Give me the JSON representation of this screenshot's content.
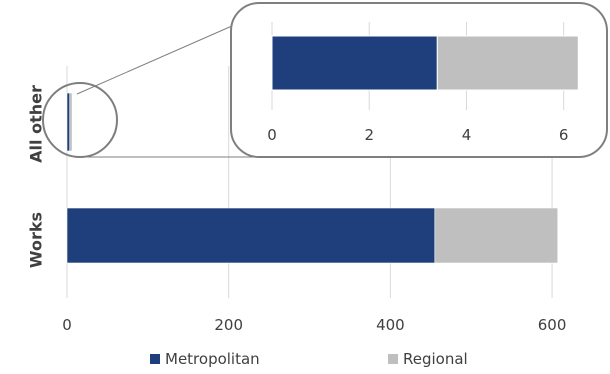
{
  "chart_data": {
    "type": "bar",
    "orientation": "horizontal",
    "stacked": true,
    "categories": [
      "Works",
      "All other"
    ],
    "series": [
      {
        "name": "Metropolitan",
        "values": [
          455,
          3.4
        ],
        "color": "#1f3e7c"
      },
      {
        "name": "Regional",
        "values": [
          152,
          2.9
        ],
        "color": "#bfbfbf"
      }
    ],
    "xlim": [
      0,
      650
    ],
    "xticks": [
      "0",
      "200",
      "400",
      "600"
    ],
    "grid": true,
    "legend_position": "bottom",
    "inset": {
      "category": "All other",
      "xlim": [
        0,
        6.5
      ],
      "xticks": [
        "0",
        "2",
        "4",
        "6"
      ]
    }
  }
}
